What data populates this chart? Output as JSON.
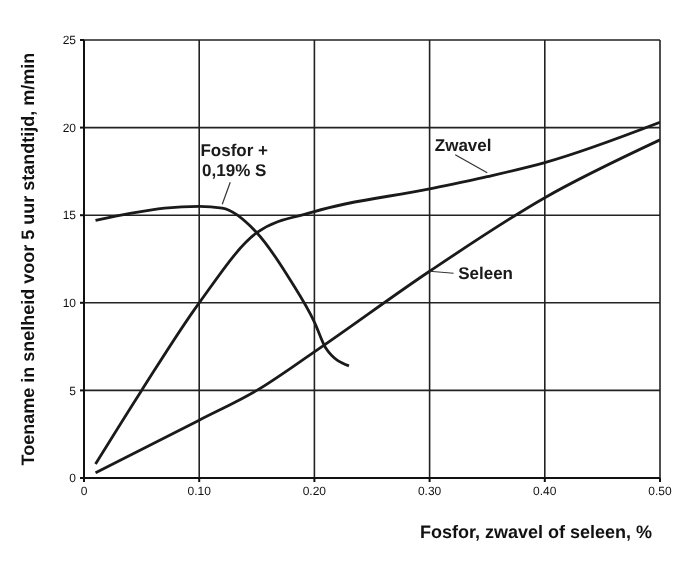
{
  "chart_data": {
    "type": "line",
    "xlabel": "Fosfor, zwavel of seleen, %",
    "ylabel": "Toename in snelheid voor 5 uur standtijd, m/min",
    "series": [
      {
        "name": "Fosfor + 0,19% S",
        "color": "#1a1a1a",
        "x": [
          0.01,
          0.04,
          0.07,
          0.1,
          0.12,
          0.15,
          0.18,
          0.2,
          0.21,
          0.23
        ],
        "values": [
          14.7,
          15.1,
          15.4,
          15.5,
          15.4,
          14,
          11.2,
          8.9,
          7.4,
          6.4
        ]
      },
      {
        "name": "Zwavel",
        "color": "#1a1a1a",
        "x": [
          0.01,
          0.05,
          0.1,
          0.15,
          0.2,
          0.3,
          0.35,
          0.4,
          0.5
        ],
        "values": [
          0.8,
          5,
          10,
          14,
          15.2,
          16.5,
          17.2,
          18,
          20.3
        ]
      },
      {
        "name": "Seleen",
        "color": "#1a1a1a",
        "x": [
          0.01,
          0.1,
          0.15,
          0.2,
          0.3,
          0.4,
          0.5
        ],
        "values": [
          0.3,
          3.3,
          5,
          7.2,
          11.8,
          16,
          19.3
        ]
      }
    ],
    "xlim": [
      0,
      0.5
    ],
    "xticks": [
      0,
      {
        "value": 0.1,
        "label": "0.10"
      },
      {
        "value": 0.2,
        "label": "0.20"
      },
      {
        "value": 0.3,
        "label": "0.30"
      },
      {
        "value": 0.4,
        "label": "0.40"
      },
      {
        "value": 0.5,
        "label": "0.50"
      }
    ],
    "ylim": [
      0,
      25
    ],
    "yticks": [
      0,
      5,
      10,
      15,
      20,
      25
    ],
    "grid": true,
    "legend": false,
    "marker": "none",
    "line_style": "solid"
  }
}
